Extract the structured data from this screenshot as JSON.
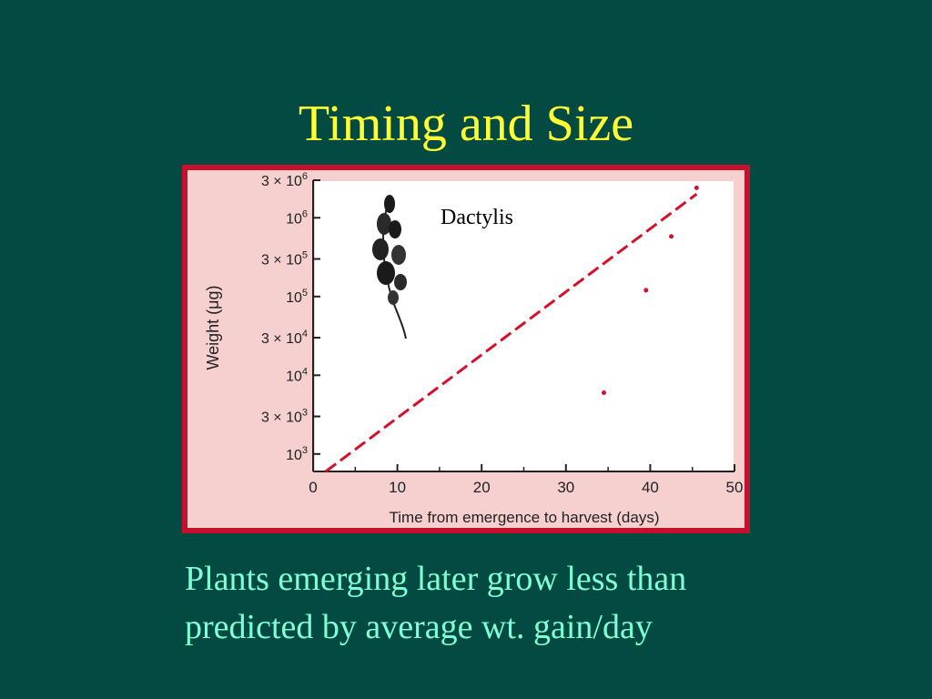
{
  "slide": {
    "title": "Timing and Size",
    "caption_lines": [
      "Plants emerging later grow less than",
      "predicted by average wt. gain/day"
    ]
  },
  "colors": {
    "background": "#024a42",
    "title": "#ffff33",
    "caption": "#7fffd4",
    "frame": "#c8102e",
    "trend_line": "#d4102a"
  },
  "chart_data": {
    "type": "scatter",
    "annotation": "Dactylis",
    "xlabel": "Time from emergence to harvest (days)",
    "ylabel": "Weight (μg)",
    "x_ticks": [
      0,
      10,
      20,
      30,
      40,
      50
    ],
    "y_ticks": [
      {
        "value": 1000,
        "base": "10",
        "exp": "3",
        "coef": ""
      },
      {
        "value": 3000,
        "base": "10",
        "exp": "3",
        "coef": "3 × "
      },
      {
        "value": 10000,
        "base": "10",
        "exp": "4",
        "coef": ""
      },
      {
        "value": 30000,
        "base": "10",
        "exp": "4",
        "coef": "3 × "
      },
      {
        "value": 100000,
        "base": "10",
        "exp": "5",
        "coef": ""
      },
      {
        "value": 300000,
        "base": "10",
        "exp": "5",
        "coef": "3 × "
      },
      {
        "value": 1000000,
        "base": "10",
        "exp": "6",
        "coef": ""
      },
      {
        "value": 3000000,
        "base": "10",
        "exp": "6",
        "coef": "3 × "
      }
    ],
    "xlim": [
      0,
      50
    ],
    "ylim": [
      600,
      3000000
    ],
    "y_scale": "log",
    "trend_line": {
      "x": [
        1.5,
        45.5
      ],
      "y": [
        600,
        2000000
      ],
      "style": "dashed"
    },
    "points": [
      {
        "x": 45.5,
        "y": 2400000
      },
      {
        "x": 42.5,
        "y": 580000
      },
      {
        "x": 39.5,
        "y": 120000
      },
      {
        "x": 34.5,
        "y": 6000
      }
    ],
    "grid": false
  }
}
